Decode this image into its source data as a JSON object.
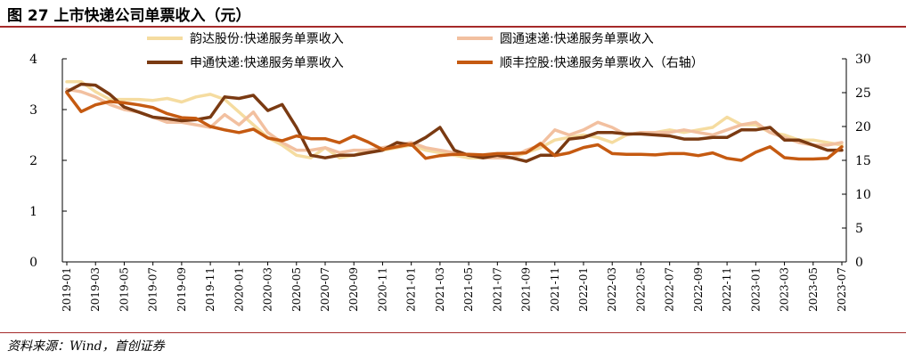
{
  "header": {
    "title": "图 27 上市快递公司单票收入（元）"
  },
  "footer": {
    "source": "资料来源：Wind，首创证券"
  },
  "chart_data": {
    "type": "line",
    "x": [
      "2019-01",
      "2019-02",
      "2019-03",
      "2019-04",
      "2019-05",
      "2019-06",
      "2019-07",
      "2019-08",
      "2019-09",
      "2019-10",
      "2019-11",
      "2019-12",
      "2020-01",
      "2020-02",
      "2020-03",
      "2020-04",
      "2020-05",
      "2020-06",
      "2020-07",
      "2020-08",
      "2020-09",
      "2020-10",
      "2020-11",
      "2020-12",
      "2021-01",
      "2021-02",
      "2021-03",
      "2021-04",
      "2021-05",
      "2021-06",
      "2021-07",
      "2021-08",
      "2021-09",
      "2021-10",
      "2021-11",
      "2021-12",
      "2022-01",
      "2022-02",
      "2022-03",
      "2022-04",
      "2022-05",
      "2022-06",
      "2022-07",
      "2022-08",
      "2022-09",
      "2022-10",
      "2022-11",
      "2022-12",
      "2023-01",
      "2023-02",
      "2023-03",
      "2023-04",
      "2023-05",
      "2023-06",
      "2023-07"
    ],
    "x_tick_labels": [
      "2019-01",
      "2019-03",
      "2019-05",
      "2019-07",
      "2019-09",
      "2019-11",
      "2020-01",
      "2020-03",
      "2020-05",
      "2020-07",
      "2020-09",
      "2020-11",
      "2021-01",
      "2021-03",
      "2021-05",
      "2021-07",
      "2021-09",
      "2021-11",
      "2022-01",
      "2022-03",
      "2022-05",
      "2022-07",
      "2022-09",
      "2022-11",
      "2023-01",
      "2023-03",
      "2023-05",
      "2023-07"
    ],
    "y_left": {
      "min": 0,
      "max": 4,
      "ticks": [
        "0",
        "1",
        "2",
        "3",
        "4"
      ]
    },
    "y_right": {
      "min": 0,
      "max": 30,
      "ticks": [
        "0",
        "5",
        "10",
        "15",
        "20",
        "25",
        "30"
      ]
    },
    "legend_position": "top",
    "grid": false,
    "series": [
      {
        "name": "韵达股份:快递服务单票收入",
        "axis": "left",
        "color": "#f5dca0",
        "width": 3.5,
        "values": [
          3.55,
          3.55,
          3.35,
          3.2,
          3.2,
          3.2,
          3.18,
          3.22,
          3.15,
          3.25,
          3.3,
          3.2,
          2.95,
          2.7,
          2.45,
          2.3,
          2.1,
          2.05,
          2.25,
          2.05,
          2.1,
          2.2,
          2.2,
          2.25,
          2.3,
          2.2,
          2.15,
          2.1,
          2.05,
          2.05,
          2.05,
          2.05,
          2.15,
          2.25,
          2.4,
          2.45,
          2.5,
          2.45,
          2.35,
          2.5,
          2.55,
          2.55,
          2.6,
          2.55,
          2.6,
          2.65,
          2.85,
          2.7,
          2.7,
          2.55,
          2.5,
          2.4,
          2.4,
          2.35,
          2.3
        ]
      },
      {
        "name": "圆通速递:快递服务单票收入",
        "axis": "left",
        "color": "#f2c0a0",
        "width": 3.5,
        "values": [
          3.4,
          3.35,
          3.25,
          3.1,
          3.0,
          2.95,
          2.85,
          2.75,
          2.75,
          2.7,
          2.65,
          2.9,
          2.7,
          2.95,
          2.55,
          2.35,
          2.2,
          2.2,
          2.25,
          2.15,
          2.2,
          2.2,
          2.25,
          2.3,
          2.35,
          2.25,
          2.2,
          2.15,
          2.1,
          2.05,
          2.05,
          2.05,
          2.2,
          2.3,
          2.6,
          2.5,
          2.6,
          2.75,
          2.65,
          2.5,
          2.55,
          2.55,
          2.55,
          2.6,
          2.55,
          2.5,
          2.6,
          2.7,
          2.75,
          2.55,
          2.45,
          2.35,
          2.3,
          2.3,
          2.35
        ]
      },
      {
        "name": "申通快递:快递服务单票收入",
        "axis": "left",
        "color": "#7a3a12",
        "width": 3.5,
        "values": [
          3.35,
          3.5,
          3.48,
          3.3,
          3.05,
          2.95,
          2.85,
          2.82,
          2.78,
          2.8,
          2.85,
          3.25,
          3.22,
          3.28,
          2.98,
          3.1,
          2.65,
          2.1,
          2.05,
          2.1,
          2.1,
          2.15,
          2.2,
          2.35,
          2.3,
          2.45,
          2.65,
          2.2,
          2.1,
          2.05,
          2.1,
          2.05,
          1.98,
          2.1,
          2.1,
          2.42,
          2.45,
          2.55,
          2.55,
          2.52,
          2.52,
          2.5,
          2.48,
          2.42,
          2.42,
          2.45,
          2.45,
          2.6,
          2.6,
          2.65,
          2.4,
          2.4,
          2.3,
          2.2,
          2.2
        ]
      },
      {
        "name": "顺丰控股:快递服务单票收入（右轴）",
        "axis": "right",
        "color": "#c55a11",
        "width": 3.5,
        "values": [
          25.0,
          22.2,
          23.2,
          23.7,
          23.5,
          23.2,
          22.8,
          21.9,
          21.3,
          21.2,
          20.0,
          19.5,
          19.1,
          19.6,
          18.3,
          17.9,
          18.6,
          18.2,
          18.2,
          17.6,
          18.6,
          17.7,
          16.6,
          17.0,
          17.4,
          15.3,
          15.7,
          15.9,
          15.9,
          15.8,
          16.0,
          16.0,
          16.1,
          17.5,
          15.7,
          16.1,
          16.9,
          17.3,
          16.0,
          15.9,
          15.9,
          15.8,
          16.0,
          16.0,
          15.7,
          16.1,
          15.3,
          15.0,
          16.2,
          17.0,
          15.4,
          15.2,
          15.2,
          15.3,
          17.0
        ]
      }
    ]
  }
}
